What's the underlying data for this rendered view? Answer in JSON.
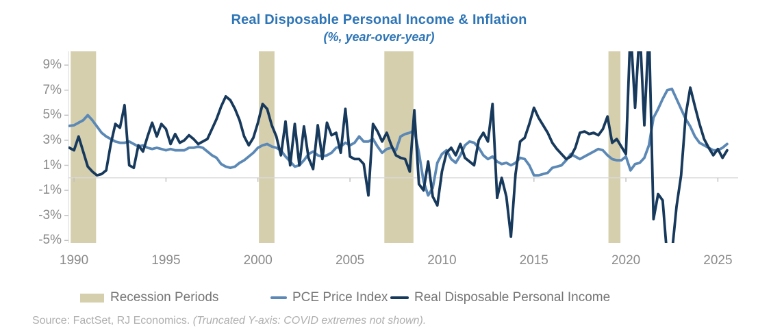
{
  "title": "Real Disposable Personal Income & Inflation",
  "subtitle": "(%, year-over-year)",
  "source": {
    "prefix": "Source: FactSet, RJ Economics. ",
    "note_italic": "(Truncated Y-axis: COVID extremes not shown)."
  },
  "legend": [
    {
      "label": "Recession Periods",
      "type": "band",
      "color": "#d6cfad"
    },
    {
      "label": "PCE Price Index",
      "type": "line",
      "color": "#5b88b5"
    },
    {
      "label": "Real Disposable Personal Income",
      "type": "line",
      "color": "#17395c"
    }
  ],
  "colors": {
    "title": "#2e75b6",
    "axis_label": "#8a8a8a",
    "legend_text": "#757575",
    "source_text": "#aeaeae",
    "recession_band": "#d6cfad",
    "pce_line": "#5b88b5",
    "rdpi_line": "#17395c",
    "zero_line": "#d9d9d9",
    "axis_line": "#d9d9d9",
    "tick": "#bfbfbf"
  },
  "chart_data": {
    "type": "line",
    "title": "Real Disposable Personal Income & Inflation",
    "subtitle": "(%, year-over-year)",
    "grid": "zero-line-only",
    "legend_position": "bottom",
    "xlim": [
      1989.7,
      2026.1
    ],
    "ylim": [
      -5.2,
      10.1
    ],
    "truncated_note": "Y-axis truncated: COVID extremes clipped at top and bottom of plot",
    "x_ticks": [
      {
        "label": "1990",
        "value": 1990
      },
      {
        "label": "1995",
        "value": 1995
      },
      {
        "label": "2000",
        "value": 2000
      },
      {
        "label": "2005",
        "value": 2005
      },
      {
        "label": "2010",
        "value": 2010
      },
      {
        "label": "2015",
        "value": 2015
      },
      {
        "label": "2020",
        "value": 2020
      },
      {
        "label": "2025",
        "value": 2025
      }
    ],
    "y_ticks": [
      {
        "label": "9%",
        "value": 9
      },
      {
        "label": "7%",
        "value": 7
      },
      {
        "label": "5%",
        "value": 5
      },
      {
        "label": "3%",
        "value": 3
      },
      {
        "label": "1%",
        "value": 1
      },
      {
        "label": "-1%",
        "value": -1
      },
      {
        "label": "-3%",
        "value": -3
      },
      {
        "label": "-5%",
        "value": -5
      }
    ],
    "recession_bands": [
      [
        1989.82,
        1991.2
      ],
      [
        2000.05,
        2000.9
      ],
      [
        2006.87,
        2008.45
      ],
      [
        2019.05,
        2019.7
      ]
    ],
    "x_start": 1989.75,
    "x_step": 0.25,
    "series": [
      {
        "id": "pce",
        "name": "PCE Price Index",
        "color": "#5b88b5",
        "stroke_width": 3.8,
        "values": [
          4.15,
          4.2,
          4.4,
          4.6,
          5.0,
          4.6,
          4.1,
          3.6,
          3.3,
          3.1,
          2.9,
          2.8,
          2.8,
          2.9,
          2.7,
          2.5,
          2.6,
          2.4,
          2.3,
          2.4,
          2.3,
          2.2,
          2.3,
          2.2,
          2.2,
          2.2,
          2.4,
          2.4,
          2.5,
          2.4,
          2.1,
          1.8,
          1.6,
          1.1,
          0.9,
          0.8,
          0.9,
          1.2,
          1.4,
          1.7,
          2.0,
          2.4,
          2.6,
          2.7,
          2.5,
          2.4,
          2.2,
          1.7,
          1.3,
          0.9,
          1.0,
          1.4,
          1.9,
          2.1,
          1.8,
          1.7,
          1.8,
          2.0,
          2.4,
          2.5,
          2.8,
          2.6,
          2.8,
          3.3,
          2.9,
          2.9,
          3.1,
          2.5,
          2.0,
          2.3,
          2.4,
          2.2,
          3.3,
          3.5,
          3.6,
          3.8,
          2.0,
          -0.3,
          -1.4,
          -0.8,
          1.2,
          1.9,
          2.2,
          1.5,
          1.2,
          1.8,
          2.6,
          2.9,
          2.8,
          2.4,
          1.8,
          1.5,
          1.7,
          1.3,
          1.1,
          1.2,
          1.0,
          1.2,
          1.6,
          1.5,
          1.0,
          0.2,
          0.2,
          0.3,
          0.4,
          0.8,
          0.9,
          1.0,
          1.4,
          1.9,
          1.7,
          1.5,
          1.7,
          1.9,
          2.1,
          2.3,
          2.2,
          1.8,
          1.5,
          1.4,
          1.4,
          1.7,
          0.6,
          1.1,
          1.2,
          1.6,
          2.6,
          4.8,
          5.5,
          6.3,
          7.0,
          7.1,
          6.3,
          5.5,
          4.7,
          4.1,
          3.3,
          2.8,
          2.6,
          2.4,
          2.2,
          2.2,
          2.4,
          2.7
        ]
      },
      {
        "id": "rdpi",
        "name": "Real Disposable Personal Income",
        "color": "#17395c",
        "stroke_width": 3.8,
        "values": [
          2.4,
          2.2,
          3.3,
          2.1,
          0.9,
          0.5,
          0.2,
          0.3,
          0.6,
          2.7,
          4.3,
          4.0,
          5.8,
          1.0,
          0.8,
          2.6,
          2.1,
          3.3,
          4.4,
          3.3,
          4.3,
          3.9,
          2.7,
          3.5,
          2.8,
          3.0,
          3.4,
          3.1,
          2.7,
          2.9,
          3.1,
          3.9,
          4.7,
          5.7,
          6.5,
          6.2,
          5.5,
          4.6,
          3.3,
          2.6,
          3.2,
          4.4,
          5.9,
          5.5,
          4.2,
          3.3,
          1.8,
          4.5,
          1.0,
          4.3,
          1.0,
          4.1,
          1.6,
          0.7,
          4.2,
          1.5,
          4.4,
          3.4,
          3.6,
          2.0,
          5.5,
          1.7,
          1.5,
          1.5,
          1.1,
          -1.4,
          4.3,
          3.7,
          2.9,
          3.6,
          2.6,
          1.8,
          1.6,
          1.5,
          0.5,
          5.4,
          -0.5,
          -1.0,
          1.3,
          -1.5,
          -2.2,
          0.5,
          2.0,
          2.4,
          1.8,
          2.7,
          1.6,
          1.3,
          1.0,
          3.0,
          3.6,
          2.9,
          5.9,
          -1.6,
          0.0,
          -1.5,
          -4.7,
          0.3,
          2.9,
          3.2,
          4.3,
          5.6,
          4.8,
          4.2,
          3.6,
          2.8,
          2.3,
          1.9,
          1.5,
          1.7,
          2.4,
          3.6,
          3.7,
          3.5,
          3.6,
          3.4,
          3.9,
          4.9,
          2.8,
          3.1,
          2.5,
          1.9,
          12,
          5.6,
          12,
          4.2,
          12,
          -3.3,
          -1.3,
          -1.8,
          -6.5,
          -6.0,
          -2.3,
          0.2,
          5.0,
          7.2,
          5.7,
          4.3,
          3.1,
          2.4,
          1.8,
          2.3,
          1.6,
          2.2
        ]
      }
    ]
  }
}
